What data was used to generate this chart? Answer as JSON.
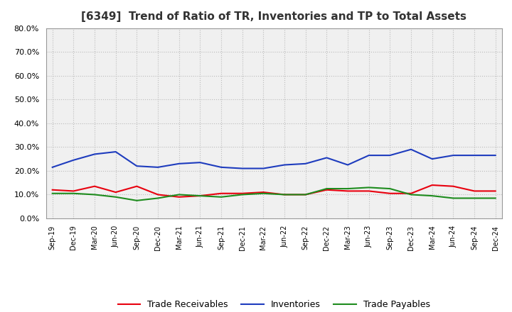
{
  "title": "[6349]  Trend of Ratio of TR, Inventories and TP to Total Assets",
  "x_labels": [
    "Sep-19",
    "Dec-19",
    "Mar-20",
    "Jun-20",
    "Sep-20",
    "Dec-20",
    "Mar-21",
    "Jun-21",
    "Sep-21",
    "Dec-21",
    "Mar-22",
    "Jun-22",
    "Sep-22",
    "Dec-22",
    "Mar-23",
    "Jun-23",
    "Sep-23",
    "Dec-23",
    "Mar-24",
    "Jun-24",
    "Sep-24",
    "Dec-24"
  ],
  "trade_receivables": [
    12.0,
    11.5,
    13.5,
    11.0,
    13.5,
    10.0,
    9.0,
    9.5,
    10.5,
    10.5,
    11.0,
    10.0,
    10.0,
    12.0,
    11.5,
    11.5,
    10.5,
    10.5,
    14.0,
    13.5,
    11.5,
    11.5
  ],
  "inventories": [
    21.5,
    24.5,
    27.0,
    28.0,
    22.0,
    21.5,
    23.0,
    23.5,
    21.5,
    21.0,
    21.0,
    22.5,
    23.0,
    25.5,
    22.5,
    26.5,
    26.5,
    29.0,
    25.0,
    26.5,
    26.5,
    26.5
  ],
  "trade_payables": [
    10.5,
    10.5,
    10.0,
    9.0,
    7.5,
    8.5,
    10.0,
    9.5,
    9.0,
    10.0,
    10.5,
    10.0,
    10.0,
    12.5,
    12.5,
    13.0,
    12.5,
    10.0,
    9.5,
    8.5,
    8.5,
    8.5
  ],
  "tr_color": "#e8000e",
  "inv_color": "#1e3cbe",
  "tp_color": "#1e8c1e",
  "ylim": [
    0,
    80
  ],
  "yticks": [
    0,
    10,
    20,
    30,
    40,
    50,
    60,
    70,
    80
  ],
  "outer_bg": "#ffffff",
  "plot_bg": "#f0f0f0",
  "grid_color": "#bbbbbb",
  "title_fontsize": 11,
  "legend_labels": [
    "Trade Receivables",
    "Inventories",
    "Trade Payables"
  ]
}
